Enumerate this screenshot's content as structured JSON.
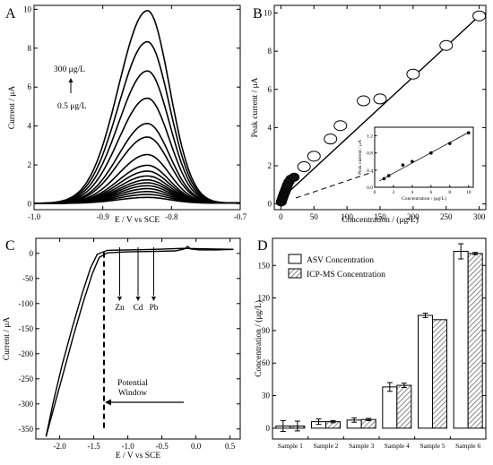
{
  "panels": {
    "A": {
      "label": "A"
    },
    "B": {
      "label": "B"
    },
    "C": {
      "label": "C"
    },
    "D": {
      "label": "D"
    }
  },
  "chart_data": [
    {
      "panel": "A",
      "type": "line",
      "xlabel": "E / V vs SCE",
      "ylabel": "Current / μA",
      "xlim": [
        -1.0,
        -0.7
      ],
      "ylim": [
        -0.3,
        10.2
      ],
      "xticks": [
        "-1.0",
        "-0.9",
        "-0.8",
        "-0.7"
      ],
      "yticks": [
        "0",
        "2",
        "4",
        "6",
        "8",
        "10"
      ],
      "peak_potential": -0.835,
      "peak_currents": [
        0.3,
        0.45,
        0.6,
        0.75,
        0.9,
        1.05,
        1.2,
        1.4,
        1.65,
        1.95,
        2.5,
        3.4,
        4.1,
        5.4,
        6.8,
        8.3,
        9.9
      ],
      "annotations": {
        "top": "300 μg/L",
        "bottom": "0.5 μg/L"
      }
    },
    {
      "panel": "B",
      "type": "scatter",
      "xlabel": "Concentration  / (μg/L)",
      "ylabel": "Peak current / μA",
      "xlim": [
        -10,
        310
      ],
      "ylim": [
        -0.3,
        10.4
      ],
      "xticks": [
        "0",
        "50",
        "100",
        "150",
        "200",
        "250",
        "300"
      ],
      "yticks": [
        "0",
        "2",
        "4",
        "6",
        "8",
        "10"
      ],
      "points": [
        [
          0.5,
          0.1
        ],
        [
          1,
          0.15
        ],
        [
          2,
          0.25
        ],
        [
          3,
          0.35
        ],
        [
          4,
          0.45
        ],
        [
          5,
          0.55
        ],
        [
          6,
          0.62
        ],
        [
          7,
          0.72
        ],
        [
          8,
          0.8
        ],
        [
          9,
          0.9
        ],
        [
          10,
          1.0
        ],
        [
          12,
          1.15
        ],
        [
          15,
          1.3
        ],
        [
          20,
          1.4
        ],
        [
          35,
          1.95
        ],
        [
          50,
          2.5
        ],
        [
          75,
          3.4
        ],
        [
          90,
          4.1
        ],
        [
          125,
          5.4
        ],
        [
          150,
          5.5
        ],
        [
          200,
          6.8
        ],
        [
          250,
          8.3
        ],
        [
          300,
          9.85
        ]
      ],
      "fit_line": [
        [
          0,
          0.25
        ],
        [
          300,
          9.85
        ]
      ],
      "inset": {
        "xlabel": "Concentration  / (μg/L)",
        "ylabel": "Peak current / μA",
        "xlim": [
          0,
          10.5
        ],
        "ylim": [
          0,
          1.4
        ],
        "xticks": [
          "0",
          "2",
          "4",
          "6",
          "8",
          "10"
        ],
        "yticks": [
          "0.0",
          "0.4",
          "0.8",
          "1.2"
        ],
        "points": [
          [
            1,
            0.2
          ],
          [
            1.5,
            0.27
          ],
          [
            3,
            0.52
          ],
          [
            4,
            0.6
          ],
          [
            6,
            0.8
          ],
          [
            8,
            1.02
          ],
          [
            10,
            1.27
          ]
        ],
        "fit_line": [
          [
            0.5,
            0.15
          ],
          [
            10,
            1.28
          ]
        ]
      }
    },
    {
      "panel": "C",
      "type": "line",
      "xlabel": "E / V vs SCE",
      "ylabel": "Current / μA",
      "xlim": [
        -2.35,
        0.65
      ],
      "ylim": [
        -370,
        30
      ],
      "xticks": [
        "-2.0",
        "-1.5",
        "-1.0",
        "-0.5",
        "0.0",
        "0.5"
      ],
      "yticks": [
        "0",
        "-50",
        "-100",
        "-150",
        "-200",
        "-250",
        "-300",
        "-350"
      ],
      "window_limit": -1.35,
      "stripping_labels": [
        {
          "text": "Zn",
          "x": -1.12
        },
        {
          "text": "Cd",
          "x": -0.85
        },
        {
          "text": "Pb",
          "x": -0.62
        }
      ],
      "window_label_1": "Potential",
      "window_label_2": "Window"
    },
    {
      "panel": "D",
      "type": "bar",
      "xlabel": "",
      "ylabel": "Concentration / (μg/L)",
      "ylim": [
        -10,
        175
      ],
      "yticks": [
        "0",
        "30",
        "60",
        "90",
        "120",
        "150"
      ],
      "categories": [
        "Sample 1",
        "Sample 2",
        "Sample 3",
        "Sample 4",
        "Sample 5",
        "Sample 6"
      ],
      "series": [
        {
          "name": "ASV Concentration",
          "values": [
            2,
            6,
            7.5,
            38,
            104,
            163
          ],
          "errors": [
            5,
            2.5,
            2,
            4,
            2,
            7
          ]
        },
        {
          "name": "ICP-MS Concentration",
          "values": [
            2,
            6,
            8,
            39.5,
            100,
            161
          ],
          "errors": [
            4.5,
            1,
            1,
            2,
            0,
            1
          ]
        }
      ],
      "legend": "top-left"
    }
  ]
}
